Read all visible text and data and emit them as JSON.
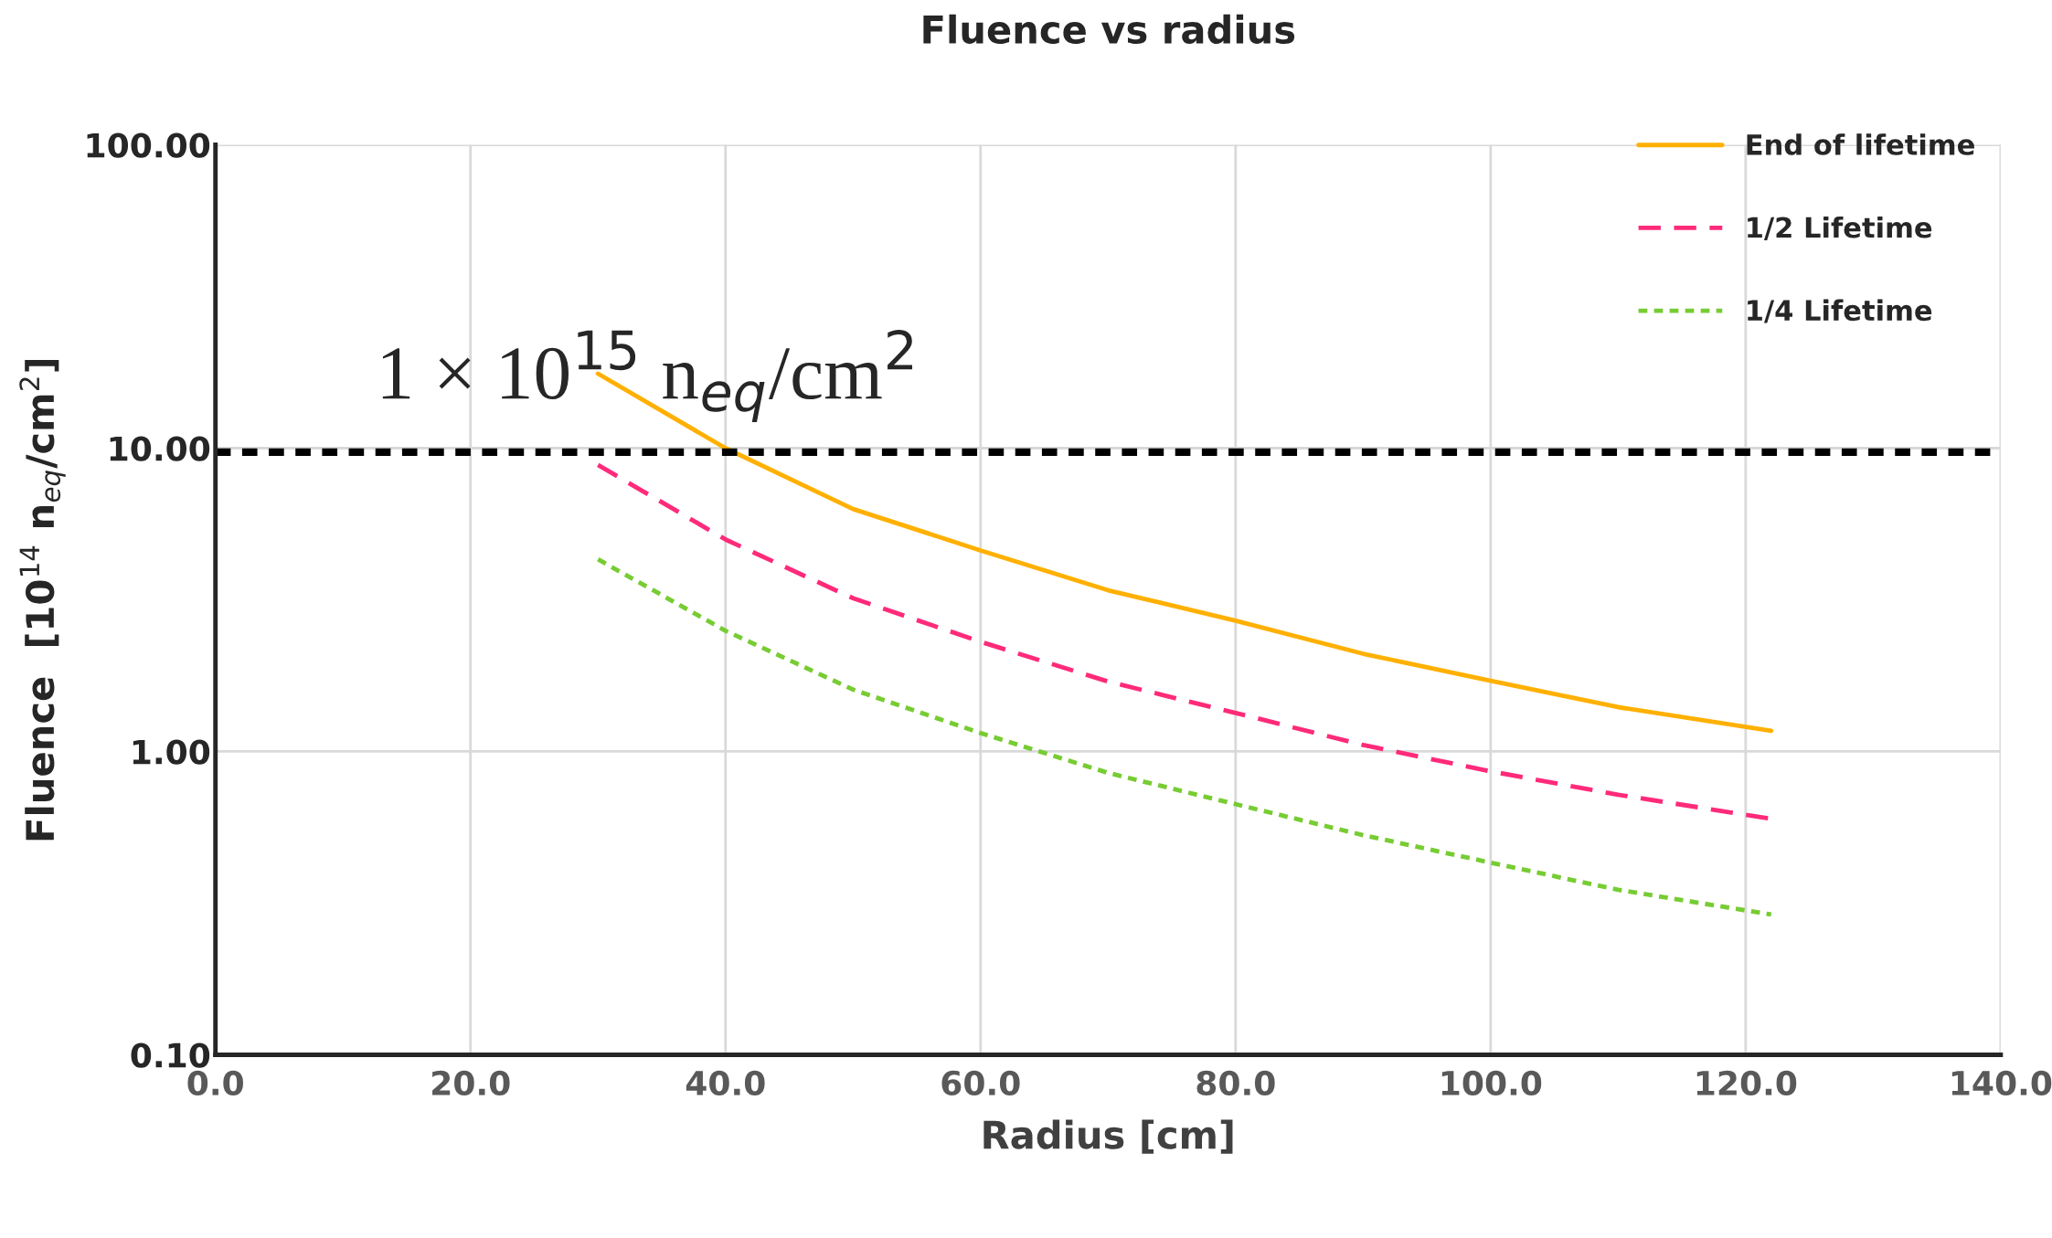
{
  "chart_data": {
    "type": "line",
    "title": "Fluence vs radius",
    "xlabel": "Radius [cm]",
    "ylabel": "Fluence  [10$^{14}$ n$_{eq}$/cm$^{2}$]",
    "x": [
      30,
      40,
      50,
      60,
      70,
      80,
      90,
      100,
      110,
      122
    ],
    "series": [
      {
        "name": "End of lifetime",
        "color": "#ffb000",
        "line_style": "solid",
        "values": [
          17.6,
          10.0,
          6.3,
          4.6,
          3.4,
          2.7,
          2.1,
          1.71,
          1.4,
          1.17
        ]
      },
      {
        "name": "1/2 Lifetime",
        "color": "#ff2a7a",
        "line_style": "dashed",
        "values": [
          8.8,
          5.0,
          3.2,
          2.3,
          1.7,
          1.34,
          1.05,
          0.86,
          0.72,
          0.6
        ]
      },
      {
        "name": "1/4 Lifetime",
        "color": "#77cc33",
        "line_style": "dotted",
        "values": [
          4.3,
          2.5,
          1.6,
          1.15,
          0.85,
          0.67,
          0.53,
          0.43,
          0.35,
          0.29
        ]
      }
    ],
    "log": "y",
    "xlim": [
      0,
      140
    ],
    "ylim": [
      0.1,
      100
    ],
    "xticks": [
      {
        "value": 0,
        "label": "0.0"
      },
      {
        "value": 20,
        "label": "20.0"
      },
      {
        "value": 40,
        "label": "40.0"
      },
      {
        "value": 60,
        "label": "60.0"
      },
      {
        "value": 80,
        "label": "80.0"
      },
      {
        "value": 100,
        "label": "100.0"
      },
      {
        "value": 120,
        "label": "120.0"
      },
      {
        "value": 140,
        "label": "140.0"
      }
    ],
    "yticks": [
      {
        "value": 0.1,
        "label": "0.10"
      },
      {
        "value": 1,
        "label": "1.00"
      },
      {
        "value": 10,
        "label": "10.00"
      },
      {
        "value": 100,
        "label": "100.00"
      }
    ],
    "ref_lines": [
      {
        "axis": "y",
        "value": 9.7,
        "label": "1 × 10$^{15}$ n$_{eq}$/cm$^{2}$",
        "color": "#000000",
        "line_style": "dotted"
      }
    ],
    "grid": true,
    "legend": "top right",
    "marker": "none"
  }
}
